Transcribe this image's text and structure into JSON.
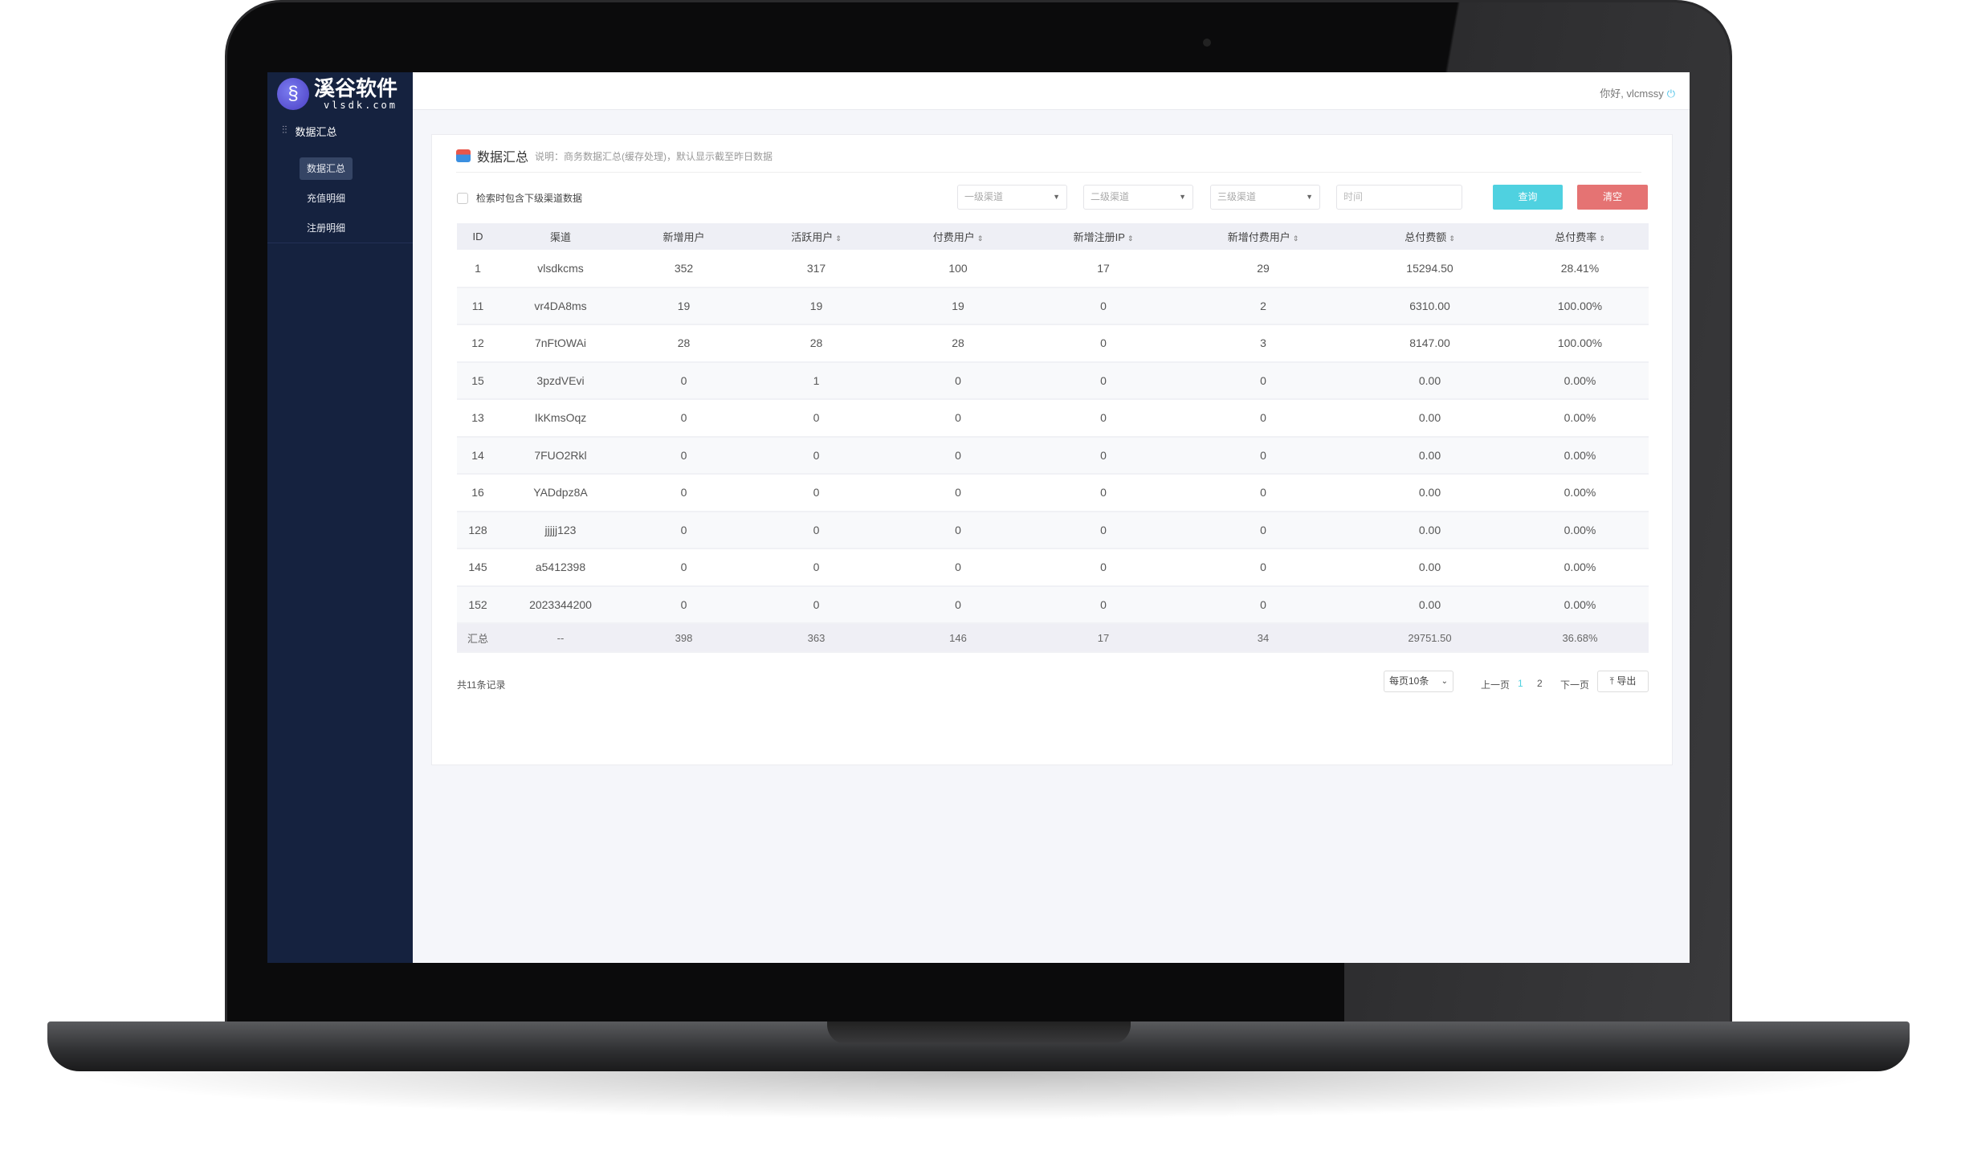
{
  "brand": {
    "name": "溪谷软件",
    "domain": "vlsdk.com"
  },
  "sidebar": {
    "group": "数据汇总",
    "items": [
      {
        "label": "数据汇总",
        "active": true
      },
      {
        "label": "充值明细"
      },
      {
        "label": "注册明细"
      }
    ]
  },
  "header": {
    "greeting": "你好, vlcmssy",
    "icon": "power-icon"
  },
  "card": {
    "title": "数据汇总",
    "description": "说明：商务数据汇总(缓存处理)，默认显示截至昨日数据"
  },
  "filters": {
    "include_sub": "检索时包含下级渠道数据",
    "level1": "一级渠道",
    "level2": "二级渠道",
    "level3": "三级渠道",
    "time_placeholder": "时间",
    "query": "查询",
    "clear": "清空"
  },
  "colors": {
    "sidebar": "#15223f",
    "query": "#4fd1e0",
    "clear": "#e57373",
    "active_page": "#4fd1e0"
  },
  "table": {
    "headers": [
      "ID",
      "渠道",
      "新增用户",
      "活跃用户",
      "付费用户",
      "新增注册IP",
      "新增付费用户",
      "总付费额",
      "总付费率"
    ],
    "rows": [
      [
        "1",
        "vlsdkcms",
        "352",
        "317",
        "100",
        "17",
        "29",
        "15294.50",
        "28.41%"
      ],
      [
        "11",
        "vr4DA8ms",
        "19",
        "19",
        "19",
        "0",
        "2",
        "6310.00",
        "100.00%"
      ],
      [
        "12",
        "7nFtOWAi",
        "28",
        "28",
        "28",
        "0",
        "3",
        "8147.00",
        "100.00%"
      ],
      [
        "15",
        "3pzdVEvi",
        "0",
        "1",
        "0",
        "0",
        "0",
        "0.00",
        "0.00%"
      ],
      [
        "13",
        "IkKmsOqz",
        "0",
        "0",
        "0",
        "0",
        "0",
        "0.00",
        "0.00%"
      ],
      [
        "14",
        "7FUO2Rkl",
        "0",
        "0",
        "0",
        "0",
        "0",
        "0.00",
        "0.00%"
      ],
      [
        "16",
        "YADdpz8A",
        "0",
        "0",
        "0",
        "0",
        "0",
        "0.00",
        "0.00%"
      ],
      [
        "128",
        "jjjjj123",
        "0",
        "0",
        "0",
        "0",
        "0",
        "0.00",
        "0.00%"
      ],
      [
        "145",
        "a5412398",
        "0",
        "0",
        "0",
        "0",
        "0",
        "0.00",
        "0.00%"
      ],
      [
        "152",
        "2023344200",
        "0",
        "0",
        "0",
        "0",
        "0",
        "0.00",
        "0.00%"
      ]
    ],
    "summary": [
      "汇总",
      "--",
      "398",
      "363",
      "146",
      "17",
      "34",
      "29751.50",
      "36.68%"
    ]
  },
  "footer": {
    "total": "共11条记录",
    "page_size": "每页10条",
    "prev": "上一页",
    "pages": [
      "1",
      "2"
    ],
    "next": "下一页",
    "export": "导出"
  }
}
